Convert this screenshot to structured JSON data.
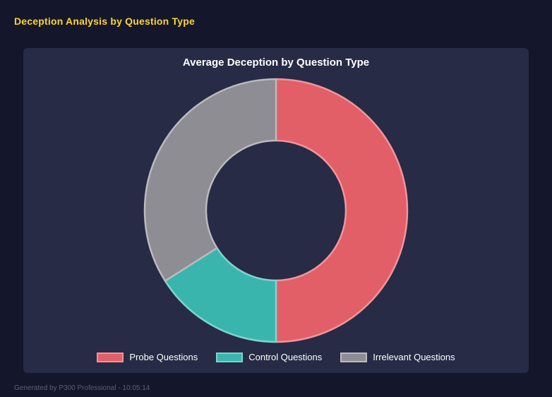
{
  "header": {
    "title": "Deception Analysis by Question Type"
  },
  "footer": {
    "text": "Generated by P300 Professional - 10:05:14"
  },
  "chart_data": {
    "type": "doughnut",
    "title": "Average Deception by Question Type",
    "categories": [
      "Probe Questions",
      "Control Questions",
      "Irrelevant Questions"
    ],
    "values": [
      50,
      16,
      34
    ],
    "unit": "percent",
    "colors": [
      "#e25f67",
      "#3ab5ae",
      "#8d8d93"
    ],
    "border_colors": [
      "#f0959b",
      "#7ed3ce",
      "#bababf"
    ],
    "cutout_ratio": 0.53,
    "start_angle": "top",
    "direction": "clockwise",
    "legend_position": "bottom"
  },
  "colors": {
    "page_bg": "#14172b",
    "panel_bg": "#272b45",
    "header_title": "#ffd52e",
    "chart_title": "#ffffff",
    "legend_text": "#ffffff",
    "footer_text": "#5b6070"
  }
}
